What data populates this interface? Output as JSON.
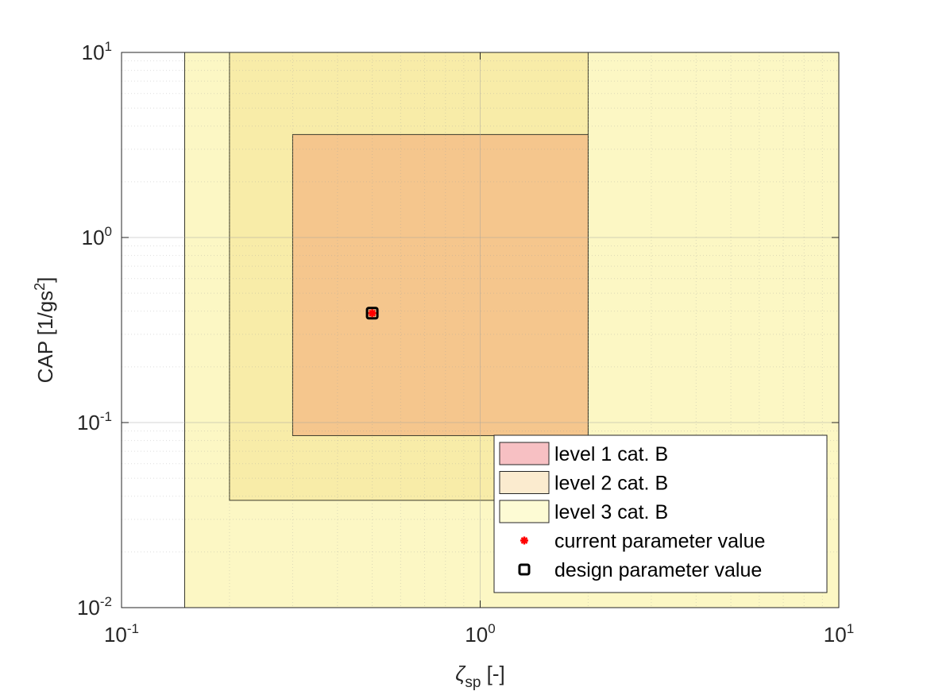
{
  "chart_data": {
    "type": "scatter",
    "title": "",
    "xlabel": {
      "main": "ζ",
      "sub": "sp",
      "suffix": " [-]"
    },
    "ylabel": {
      "main": "CAP [1/gs",
      "sup": "2",
      "suffix": "]"
    },
    "xscale": "log",
    "yscale": "log",
    "xlim": [
      0.1,
      10
    ],
    "ylim": [
      0.01,
      10
    ],
    "grid": "on (major and minor)",
    "xticks": [
      {
        "value": 0.1,
        "base": "10",
        "exp": "-1"
      },
      {
        "value": 1,
        "base": "10",
        "exp": "0"
      },
      {
        "value": 10,
        "base": "10",
        "exp": "1"
      }
    ],
    "yticks": [
      {
        "value": 0.01,
        "base": "10",
        "exp": "-2"
      },
      {
        "value": 0.1,
        "base": "10",
        "exp": "-1"
      },
      {
        "value": 1,
        "base": "10",
        "exp": "0"
      },
      {
        "value": 10,
        "base": "10",
        "exp": "1"
      }
    ],
    "regions": [
      {
        "name": "level 3 cat. B",
        "x": [
          0.15,
          10
        ],
        "y": [
          0.01,
          10
        ],
        "color": "#fcf7c4"
      },
      {
        "name": "level 2 cat. B",
        "x": [
          0.2,
          2.0
        ],
        "y": [
          0.038,
          10
        ],
        "color": "#f8eca8"
      },
      {
        "name": "level 1 cat. B",
        "x": [
          0.3,
          2.0
        ],
        "y": [
          0.085,
          3.6
        ],
        "color": "#f5c68d"
      }
    ],
    "points": [
      {
        "name": "design parameter value",
        "x": 0.5,
        "y": 0.39,
        "marker": "square",
        "color": "#000000"
      },
      {
        "name": "current parameter value",
        "x": 0.5,
        "y": 0.39,
        "marker": "asterisk",
        "color": "#ff0000"
      }
    ],
    "legend": {
      "position": "bottom-right",
      "entries": [
        {
          "label": "level 1 cat. B",
          "kind": "patch",
          "color": "#f7c0c3"
        },
        {
          "label": "level 2 cat. B",
          "kind": "patch",
          "color": "#fbebcf"
        },
        {
          "label": "level 3 cat. B",
          "kind": "patch",
          "color": "#fdfbd4"
        },
        {
          "label": "current parameter value",
          "kind": "asterisk",
          "color": "#ff0000"
        },
        {
          "label": "design parameter value",
          "kind": "square",
          "color": "#000000"
        }
      ]
    }
  }
}
